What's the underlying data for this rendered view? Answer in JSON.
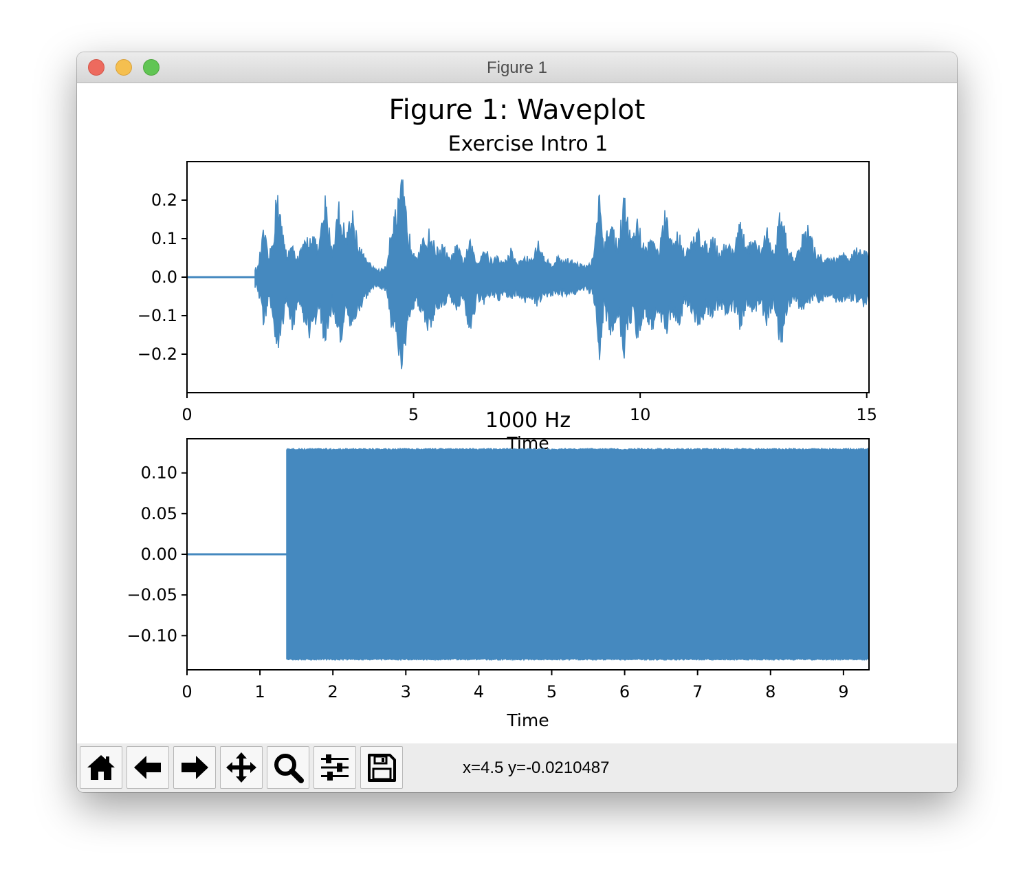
{
  "window": {
    "title": "Figure 1"
  },
  "figure": {
    "suptitle": "Figure 1: Waveplot"
  },
  "toolbar": {
    "buttons": [
      {
        "name": "home-button",
        "icon": "home-icon"
      },
      {
        "name": "back-button",
        "icon": "arrow-left-icon"
      },
      {
        "name": "forward-button",
        "icon": "arrow-right-icon"
      },
      {
        "name": "pan-button",
        "icon": "move-icon"
      },
      {
        "name": "zoom-button",
        "icon": "magnifier-icon"
      },
      {
        "name": "configure-subplots-button",
        "icon": "sliders-icon"
      },
      {
        "name": "save-button",
        "icon": "floppy-disk-icon"
      }
    ],
    "coords": "x=4.5 y=-0.0210487"
  },
  "colors": {
    "wave": "#4589bf",
    "toolbar_bg": "#ececec"
  },
  "chart_data": [
    {
      "type": "line",
      "title": "Exercise Intro 1",
      "xlabel": "Time",
      "ylabel": "",
      "xlim": [
        0,
        15.05
      ],
      "ylim": [
        -0.3,
        0.3
      ],
      "xticks": [
        0,
        5,
        10,
        15
      ],
      "xtick_labels": [
        "0",
        "5",
        "10",
        "15"
      ],
      "yticks": [
        0.2,
        0.1,
        0.0,
        -0.1,
        -0.2
      ],
      "ytick_labels": [
        "0.2",
        "0.1",
        "0.0",
        "−0.1",
        "−0.2"
      ],
      "series": [
        {
          "signal_start": 1.5,
          "envelope_t": [
            1.5,
            1.55,
            1.7,
            1.8,
            1.9,
            2.0,
            2.1,
            2.2,
            2.3,
            2.45,
            2.6,
            2.75,
            2.9,
            3.05,
            3.2,
            3.35,
            3.5,
            3.65,
            3.8,
            3.95,
            4.1,
            4.25,
            4.4,
            4.5,
            4.65,
            4.75,
            4.9,
            5.05,
            5.2,
            5.35,
            5.5,
            5.65,
            5.8,
            5.95,
            6.1,
            6.25,
            6.4,
            6.55,
            6.7,
            6.85,
            7.0,
            7.15,
            7.3,
            7.45,
            7.6,
            7.75,
            7.9,
            8.05,
            8.2,
            8.35,
            8.5,
            8.65,
            8.8,
            8.95,
            9.1,
            9.2,
            9.35,
            9.5,
            9.65,
            9.8,
            9.95,
            10.1,
            10.25,
            10.4,
            10.55,
            10.7,
            10.85,
            11.0,
            11.15,
            11.3,
            11.45,
            11.6,
            11.75,
            11.9,
            12.05,
            12.2,
            12.35,
            12.5,
            12.65,
            12.8,
            12.95,
            13.1,
            13.25,
            13.4,
            13.55,
            13.7,
            13.85,
            14.0,
            14.15,
            14.3,
            14.45,
            14.6,
            14.75,
            14.9,
            15.05
          ],
          "envelope_max": [
            0.03,
            0.02,
            0.14,
            0.05,
            0.12,
            0.27,
            0.13,
            0.07,
            0.09,
            0.06,
            0.1,
            0.13,
            0.08,
            0.22,
            0.08,
            0.21,
            0.12,
            0.19,
            0.09,
            0.05,
            0.03,
            0.02,
            0.03,
            0.15,
            0.2,
            0.27,
            0.12,
            0.07,
            0.1,
            0.13,
            0.08,
            0.09,
            0.05,
            0.09,
            0.05,
            0.1,
            0.04,
            0.09,
            0.05,
            0.06,
            0.04,
            0.08,
            0.04,
            0.06,
            0.05,
            0.1,
            0.05,
            0.04,
            0.06,
            0.05,
            0.05,
            0.04,
            0.03,
            0.05,
            0.23,
            0.08,
            0.17,
            0.09,
            0.22,
            0.11,
            0.16,
            0.08,
            0.12,
            0.07,
            0.18,
            0.1,
            0.13,
            0.07,
            0.1,
            0.14,
            0.09,
            0.12,
            0.07,
            0.1,
            0.08,
            0.15,
            0.09,
            0.1,
            0.08,
            0.14,
            0.06,
            0.2,
            0.09,
            0.05,
            0.11,
            0.14,
            0.08,
            0.06,
            0.05,
            0.06,
            0.07,
            0.05,
            0.08,
            0.07,
            0.08
          ],
          "envelope_min": [
            -0.03,
            -0.03,
            -0.14,
            -0.06,
            -0.12,
            -0.27,
            -0.14,
            -0.07,
            -0.17,
            -0.07,
            -0.13,
            -0.18,
            -0.09,
            -0.2,
            -0.08,
            -0.2,
            -0.12,
            -0.15,
            -0.09,
            -0.06,
            -0.03,
            -0.03,
            -0.04,
            -0.13,
            -0.22,
            -0.27,
            -0.13,
            -0.07,
            -0.1,
            -0.16,
            -0.09,
            -0.08,
            -0.06,
            -0.09,
            -0.06,
            -0.17,
            -0.06,
            -0.08,
            -0.05,
            -0.07,
            -0.05,
            -0.06,
            -0.05,
            -0.07,
            -0.06,
            -0.08,
            -0.06,
            -0.05,
            -0.05,
            -0.05,
            -0.05,
            -0.04,
            -0.04,
            -0.05,
            -0.23,
            -0.09,
            -0.16,
            -0.1,
            -0.22,
            -0.12,
            -0.17,
            -0.1,
            -0.15,
            -0.09,
            -0.17,
            -0.1,
            -0.13,
            -0.08,
            -0.11,
            -0.15,
            -0.09,
            -0.12,
            -0.08,
            -0.11,
            -0.09,
            -0.14,
            -0.09,
            -0.1,
            -0.08,
            -0.13,
            -0.07,
            -0.2,
            -0.09,
            -0.06,
            -0.1,
            -0.08,
            -0.06,
            -0.07,
            -0.06,
            -0.07,
            -0.07,
            -0.06,
            -0.07,
            -0.08,
            -0.07
          ]
        }
      ]
    },
    {
      "type": "line",
      "title": "1000 Hz",
      "xlabel": "Time",
      "ylabel": "",
      "xlim": [
        0,
        9.35
      ],
      "ylim": [
        -0.142,
        0.142
      ],
      "xticks": [
        0,
        1,
        2,
        3,
        4,
        5,
        6,
        7,
        8,
        9
      ],
      "xtick_labels": [
        "0",
        "1",
        "2",
        "3",
        "4",
        "5",
        "6",
        "7",
        "8",
        "9"
      ],
      "yticks": [
        0.1,
        0.05,
        0.0,
        -0.05,
        -0.1
      ],
      "ytick_labels": [
        "0.10",
        "0.05",
        "0.00",
        "−0.05",
        "−0.10"
      ],
      "series": [
        {
          "signal_start": 1.37,
          "envelope_t": [
            1.37,
            1.45,
            9.35
          ],
          "envelope_max": [
            0.13,
            0.13,
            0.13
          ],
          "envelope_min": [
            -0.13,
            -0.13,
            -0.13
          ]
        }
      ]
    }
  ]
}
